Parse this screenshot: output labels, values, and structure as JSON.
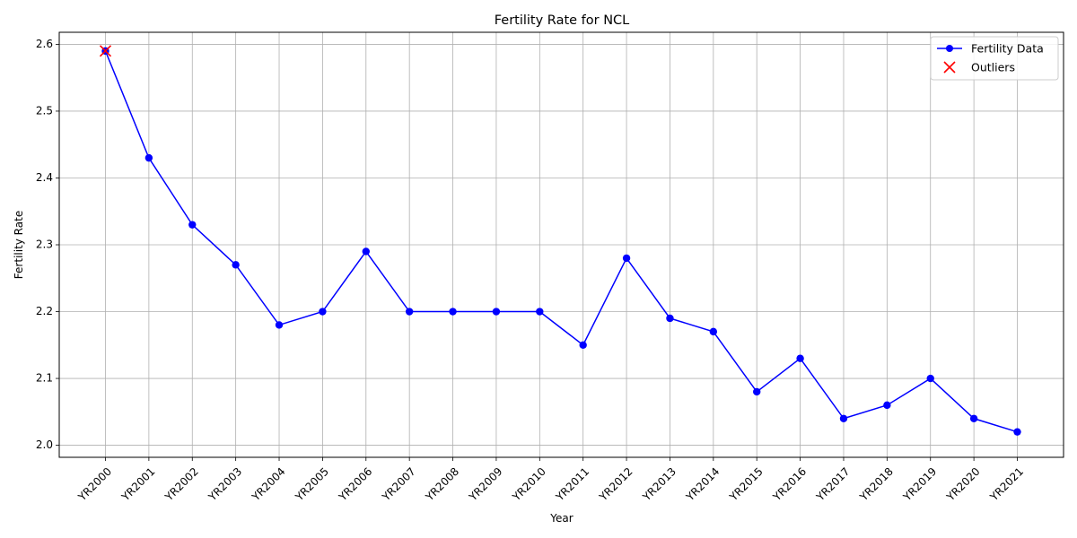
{
  "chart_data": {
    "type": "line",
    "title": "Fertility Rate for NCL",
    "xlabel": "Year",
    "ylabel": "Fertility Rate",
    "categories": [
      "YR2000",
      "YR2001",
      "YR2002",
      "YR2003",
      "YR2004",
      "YR2005",
      "YR2006",
      "YR2007",
      "YR2008",
      "YR2009",
      "YR2010",
      "YR2011",
      "YR2012",
      "YR2013",
      "YR2014",
      "YR2015",
      "YR2016",
      "YR2017",
      "YR2018",
      "YR2019",
      "YR2020",
      "YR2021"
    ],
    "series": [
      {
        "name": "Fertility Data",
        "color": "#0000ff",
        "marker": "circle",
        "values": [
          2.59,
          2.43,
          2.33,
          2.27,
          2.18,
          2.2,
          2.29,
          2.2,
          2.2,
          2.2,
          2.2,
          2.15,
          2.28,
          2.19,
          2.17,
          2.08,
          2.13,
          2.04,
          2.06,
          2.1,
          2.04,
          2.02
        ]
      },
      {
        "name": "Outliers",
        "color": "#ff0000",
        "marker": "x",
        "points": [
          {
            "x": "YR2000",
            "y": 2.59
          }
        ]
      }
    ],
    "ylim": [
      1.982,
      2.618
    ],
    "yticks": [
      "2.0",
      "2.1",
      "2.2",
      "2.3",
      "2.4",
      "2.5",
      "2.6"
    ],
    "grid": true,
    "legend_position": "top-right"
  }
}
